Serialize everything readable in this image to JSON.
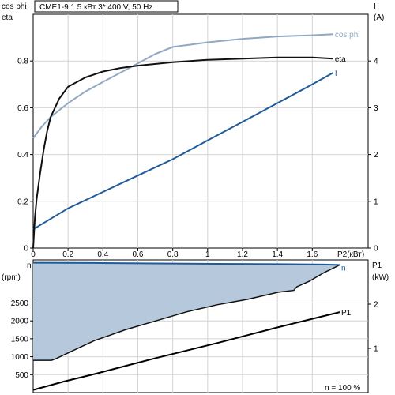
{
  "chart_data": [
    {
      "type": "line",
      "title": "CME1-9    1.5 кВт   3* 400 V, 50 Hz",
      "xlabel": "P2(кВт)",
      "xlim": [
        0,
        1.92
      ],
      "x_ticks": [
        "0",
        "0.2",
        "0.4",
        "0.6",
        "0.8",
        "1",
        "1.2",
        "1.4",
        "1.6"
      ],
      "left_axis": {
        "label_lines": [
          "cos phi",
          "eta"
        ],
        "ylim": [
          0,
          1.0
        ],
        "ticks": [
          "0",
          "0.2",
          "0.4",
          "0.6",
          "0.8"
        ]
      },
      "right_axis": {
        "label_lines": [
          "I",
          "(A)"
        ],
        "ylim": [
          0,
          5
        ],
        "ticks": [
          "0",
          "1",
          "2",
          "3",
          "4"
        ]
      },
      "grid": true,
      "colors": {
        "cos_phi": "#90a8c2",
        "eta": "#111111",
        "I": "#1f5a99"
      },
      "series": [
        {
          "name": "cos phi",
          "axis": "left",
          "x": [
            0,
            0.05,
            0.1,
            0.15,
            0.2,
            0.3,
            0.4,
            0.5,
            0.6,
            0.7,
            0.8,
            0.9,
            1.0,
            1.2,
            1.4,
            1.6,
            1.72
          ],
          "y": [
            0.47,
            0.52,
            0.56,
            0.59,
            0.62,
            0.67,
            0.71,
            0.75,
            0.79,
            0.83,
            0.86,
            0.87,
            0.88,
            0.895,
            0.905,
            0.91,
            0.915
          ]
        },
        {
          "name": "eta",
          "axis": "left",
          "x": [
            0,
            0.01,
            0.02,
            0.04,
            0.06,
            0.08,
            0.1,
            0.15,
            0.2,
            0.3,
            0.4,
            0.5,
            0.6,
            0.8,
            1.0,
            1.2,
            1.4,
            1.6,
            1.72
          ],
          "y": [
            0,
            0.13,
            0.21,
            0.32,
            0.42,
            0.5,
            0.56,
            0.64,
            0.69,
            0.73,
            0.755,
            0.77,
            0.78,
            0.795,
            0.805,
            0.81,
            0.815,
            0.815,
            0.81
          ]
        },
        {
          "name": "I",
          "axis": "right",
          "x": [
            0,
            0.2,
            0.4,
            0.6,
            0.8,
            1.0,
            1.2,
            1.4,
            1.6,
            1.72
          ],
          "y": [
            0.4,
            0.85,
            1.2,
            1.55,
            1.9,
            2.3,
            2.7,
            3.1,
            3.5,
            3.75
          ]
        }
      ]
    },
    {
      "type": "area",
      "xlim": [
        0,
        100
      ],
      "x_caption": "n  = 100 %",
      "left_axis": {
        "label_lines": [
          "n",
          "(rpm)"
        ],
        "ylim": [
          0,
          3700
        ],
        "ticks": [
          "500",
          "1000",
          "1500",
          "2000",
          "2500"
        ]
      },
      "right_axis": {
        "label_lines": [
          "P1",
          "(kW)"
        ],
        "ylim": [
          0,
          3.0
        ],
        "ticks": [
          "1",
          "2"
        ]
      },
      "grid": true,
      "colors": {
        "n": "#1f5a99",
        "region_fill": "#b5c8dc",
        "P1": "#000000"
      },
      "series": [
        {
          "name": "n",
          "axis": "left",
          "x": [
            0,
            20,
            40,
            60,
            80,
            95,
            100
          ],
          "y": [
            3620,
            3615,
            3600,
            3590,
            3580,
            3570,
            3560
          ]
        },
        {
          "name": "",
          "axis": "left",
          "x": [
            0,
            6,
            7.5,
            10,
            15,
            20,
            25,
            30,
            40,
            50,
            60,
            70,
            80,
            85,
            86,
            90,
            95,
            100
          ],
          "y": [
            900,
            900,
            950,
            1050,
            1250,
            1450,
            1600,
            1750,
            2000,
            2250,
            2450,
            2600,
            2800,
            2850,
            2950,
            3100,
            3350,
            3560
          ]
        },
        {
          "name": "P1",
          "axis": "right",
          "x": [
            0,
            10,
            20,
            30,
            40,
            50,
            60,
            70,
            80,
            90,
            100
          ],
          "y": [
            0.06,
            0.25,
            0.42,
            0.6,
            0.78,
            0.95,
            1.12,
            1.3,
            1.48,
            1.65,
            1.82
          ]
        }
      ]
    }
  ]
}
